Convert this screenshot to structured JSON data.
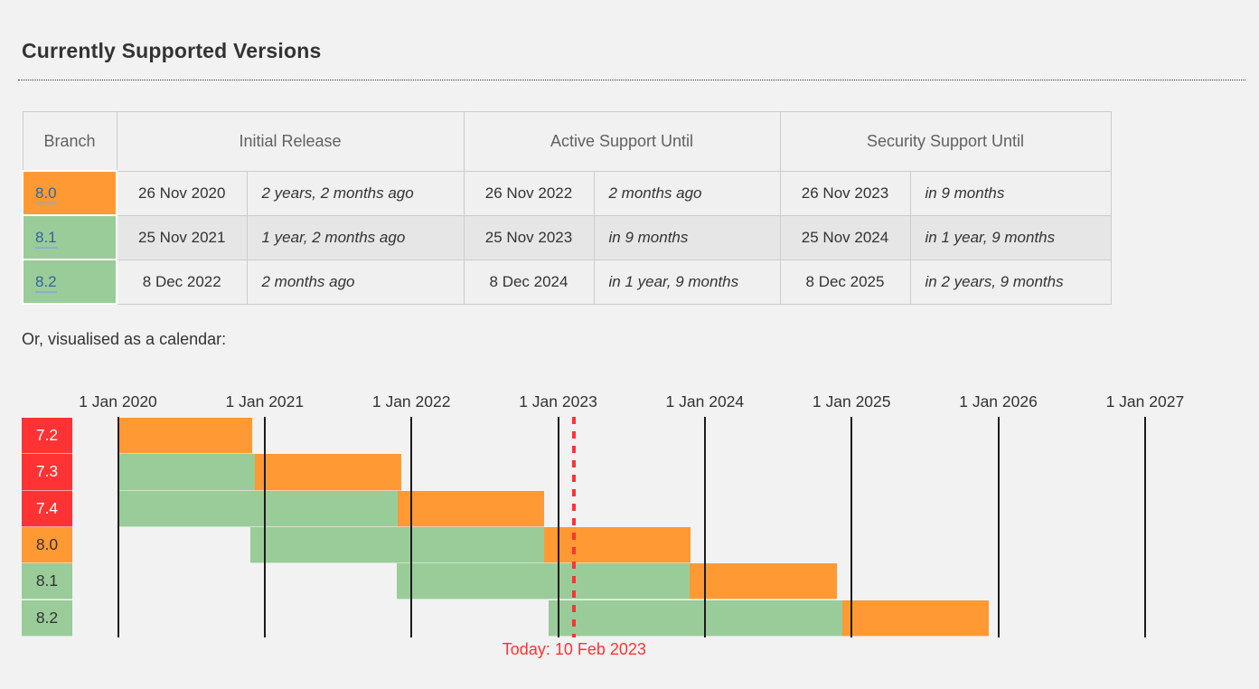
{
  "header": {
    "title": "Currently Supported Versions"
  },
  "support_table": {
    "columns": {
      "branch": "Branch",
      "initial_release": "Initial Release",
      "active_support_until": "Active Support Until",
      "security_support_until": "Security Support Until"
    },
    "rows": [
      {
        "branch": "8.0",
        "branch_color": "#ff9933",
        "initial_release_date": "26 Nov 2020",
        "initial_release_relative": "2 years, 2 months ago",
        "active_until_date": "26 Nov 2022",
        "active_until_relative": "2 months ago",
        "security_until_date": "26 Nov 2023",
        "security_until_relative": "in 9 months"
      },
      {
        "branch": "8.1",
        "branch_color": "#99cc99",
        "initial_release_date": "25 Nov 2021",
        "initial_release_relative": "1 year, 2 months ago",
        "active_until_date": "25 Nov 2023",
        "active_until_relative": "in 9 months",
        "security_until_date": "25 Nov 2024",
        "security_until_relative": "in 1 year, 9 months"
      },
      {
        "branch": "8.2",
        "branch_color": "#99cc99",
        "initial_release_date": "8 Dec 2022",
        "initial_release_relative": "2 months ago",
        "active_until_date": "8 Dec 2024",
        "active_until_relative": "in 1 year, 9 months",
        "security_until_date": "8 Dec 2025",
        "security_until_relative": "in 2 years, 9 months"
      }
    ]
  },
  "calendar": {
    "intro": "Or, visualised as a calendar:"
  },
  "chart_data": {
    "type": "gantt",
    "title": "",
    "axis": {
      "start": "2020-01-01",
      "end": "2027-01-01",
      "tick_labels": [
        "1 Jan 2020",
        "1 Jan 2021",
        "1 Jan 2022",
        "1 Jan 2023",
        "1 Jan 2024",
        "1 Jan 2025",
        "1 Jan 2026",
        "1 Jan 2027"
      ]
    },
    "rows": [
      {
        "branch": "7.2",
        "label_color": "red",
        "segments": [
          {
            "kind": "security",
            "from": "2020-01-01",
            "to": "2020-11-30"
          }
        ]
      },
      {
        "branch": "7.3",
        "label_color": "red",
        "segments": [
          {
            "kind": "active",
            "from": "2020-01-01",
            "to": "2020-12-06"
          },
          {
            "kind": "security",
            "from": "2020-12-06",
            "to": "2021-12-06"
          }
        ]
      },
      {
        "branch": "7.4",
        "label_color": "red",
        "segments": [
          {
            "kind": "active",
            "from": "2020-01-01",
            "to": "2021-11-28"
          },
          {
            "kind": "security",
            "from": "2021-11-28",
            "to": "2022-11-28"
          }
        ]
      },
      {
        "branch": "8.0",
        "label_color": "orange",
        "segments": [
          {
            "kind": "active",
            "from": "2020-11-26",
            "to": "2022-11-26"
          },
          {
            "kind": "security",
            "from": "2022-11-26",
            "to": "2023-11-26"
          }
        ]
      },
      {
        "branch": "8.1",
        "label_color": "green",
        "segments": [
          {
            "kind": "active",
            "from": "2021-11-25",
            "to": "2023-11-25"
          },
          {
            "kind": "security",
            "from": "2023-11-25",
            "to": "2024-11-25"
          }
        ]
      },
      {
        "branch": "8.2",
        "label_color": "green",
        "segments": [
          {
            "kind": "active",
            "from": "2022-12-08",
            "to": "2024-12-08"
          },
          {
            "kind": "security",
            "from": "2024-12-08",
            "to": "2025-12-08"
          }
        ]
      }
    ],
    "today": {
      "date": "2023-02-10",
      "label": "Today: 10 Feb 2023"
    },
    "legend_position": "none",
    "grid": true
  },
  "colors": {
    "active_support_green": "#99cc99",
    "security_support_orange": "#ff9933",
    "end_of_life_red": "#ff3333",
    "today_red": "#ff3333",
    "link_blue": "#336699",
    "gridline": "#1c1c1c",
    "page_background": "#f2f2f2"
  }
}
